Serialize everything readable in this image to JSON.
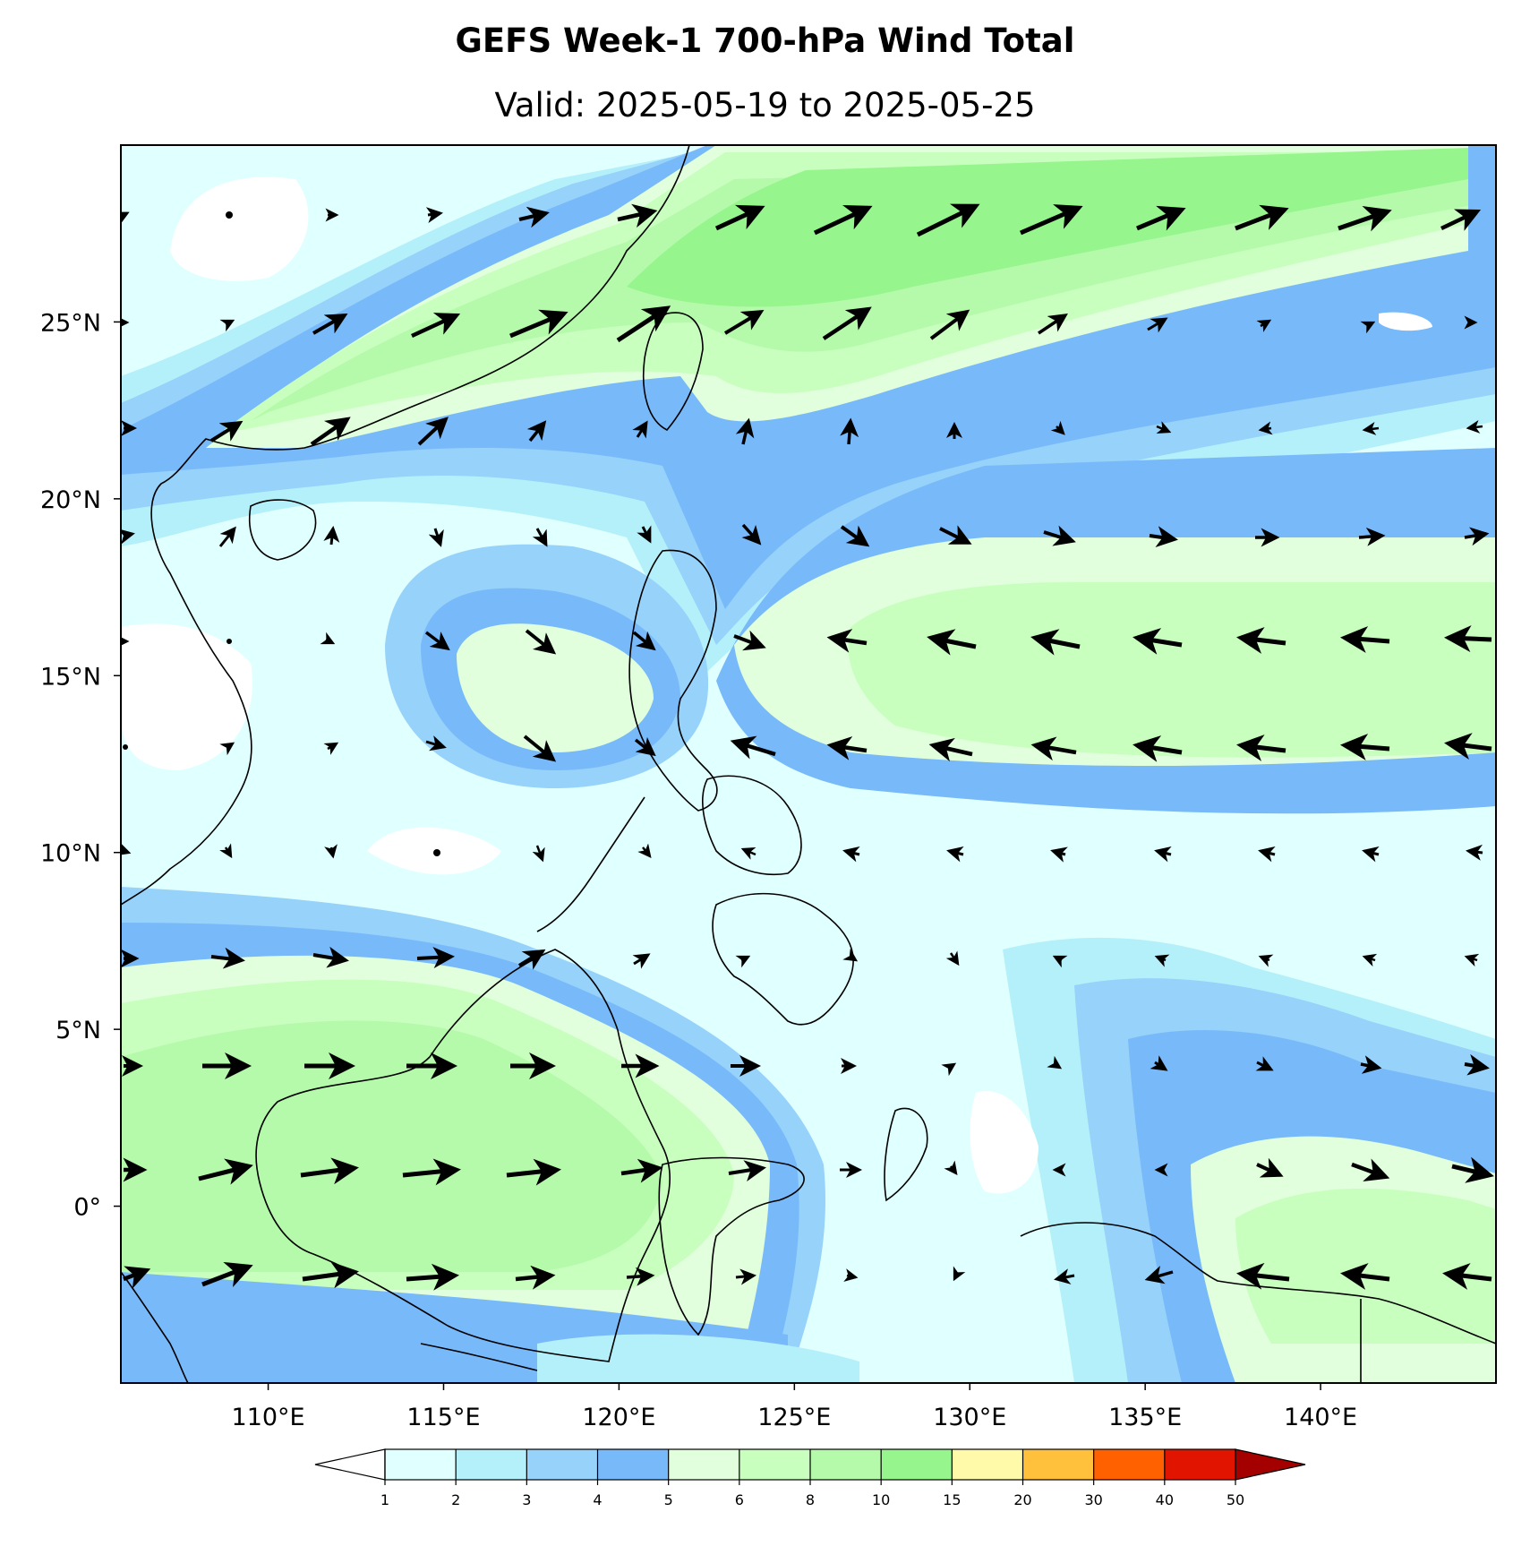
{
  "title": "GEFS Week-1 700-hPa Wind Total",
  "subtitle": "Valid: 2025-05-19 to 2025-05-25",
  "map": {
    "lon_range": [
      105.8,
      145.0
    ],
    "lat_range": [
      -5.0,
      30.0
    ],
    "lon_ticks": [
      {
        "value": 110,
        "label": "110°E"
      },
      {
        "value": 115,
        "label": "115°E"
      },
      {
        "value": 120,
        "label": "120°E"
      },
      {
        "value": 125,
        "label": "125°E"
      },
      {
        "value": 130,
        "label": "130°E"
      },
      {
        "value": 135,
        "label": "135°E"
      },
      {
        "value": 140,
        "label": "140°E"
      }
    ],
    "lat_ticks": [
      {
        "value": 25,
        "label": "25°N"
      },
      {
        "value": 20,
        "label": "20°N"
      },
      {
        "value": 15,
        "label": "15°N"
      },
      {
        "value": 10,
        "label": "10°N"
      },
      {
        "value": 5,
        "label": "5°N"
      },
      {
        "value": 0,
        "label": "0°"
      }
    ],
    "wind_grid_lons": [
      106,
      109,
      112,
      115,
      118,
      121,
      124,
      127,
      130,
      133,
      136,
      139,
      142,
      145
    ],
    "wind_grid_lats": [
      28,
      25,
      22,
      19,
      16,
      13,
      10,
      7,
      4,
      1,
      -2,
      -5
    ],
    "colors": {
      "ocean_base": "#e0ffff",
      "coastline": "#000000"
    }
  },
  "colorbar": {
    "levels": [
      "1",
      "2",
      "3",
      "4",
      "5",
      "6",
      "8",
      "10",
      "15",
      "20",
      "30",
      "40",
      "50"
    ],
    "colors": [
      "#e0ffff",
      "#b4f0fa",
      "#96d2fa",
      "#78b9fa",
      "#e1ffdc",
      "#c8ffbe",
      "#b4faaa",
      "#96f58c",
      "#fffaaa",
      "#ffc03c",
      "#ff6000",
      "#e11400",
      "#a50000"
    ],
    "under_color": "#ffffff",
    "over_color": "#a50000"
  }
}
